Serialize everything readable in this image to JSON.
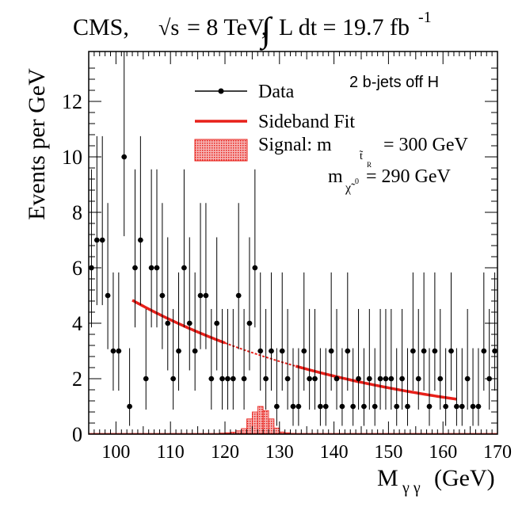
{
  "chart_data": {
    "type": "scatter",
    "title": {
      "experiment": "CMS,",
      "sqrt_s_symbol": "√s",
      "energy": "= 8 TeV,",
      "lumi_integral": "∫",
      "lumi_text": "L dt = 19.7 fb",
      "lumi_exp": "-1"
    },
    "annotation": "2 b-jets off H",
    "xlabel": "M",
    "xlabel_sub": "γ γ",
    "xlabel_unit": "(GeV)",
    "ylabel": "Events per GeV",
    "xlim": [
      95,
      170
    ],
    "ylim": [
      0,
      13.8
    ],
    "xticks": [
      100,
      110,
      120,
      130,
      140,
      150,
      160,
      170
    ],
    "yticks": [
      0,
      2,
      4,
      6,
      8,
      10,
      12
    ],
    "legend": {
      "position": "top-right",
      "data_label": "Data",
      "fit_label": "Sideband Fit",
      "signal_label_prefix": "Signal: m",
      "signal_sub_1": "t̃",
      "signal_sub_1b": "R",
      "signal_value_1": "= 300 GeV",
      "signal_label_2": "m",
      "signal_sub_2": "χ̃",
      "signal_sub_2b": "0",
      "signal_value_2": "= 290 GeV"
    },
    "series": [
      {
        "name": "Data",
        "x": [
          95.5,
          96.5,
          97.5,
          98.5,
          99.5,
          100.5,
          101.5,
          102.5,
          103.5,
          104.5,
          105.5,
          106.5,
          107.5,
          108.5,
          109.5,
          110.5,
          111.5,
          112.5,
          113.5,
          114.5,
          115.5,
          116.5,
          117.5,
          118.5,
          119.5,
          120.5,
          121.5,
          122.5,
          123.5,
          124.5,
          125.5,
          126.5,
          127.5,
          128.5,
          129.5,
          130.5,
          131.5,
          132.5,
          133.5,
          134.5,
          135.5,
          136.5,
          137.5,
          138.5,
          139.5,
          140.5,
          141.5,
          142.5,
          143.5,
          144.5,
          145.5,
          146.5,
          147.5,
          148.5,
          149.5,
          150.5,
          151.5,
          152.5,
          153.5,
          154.5,
          155.5,
          156.5,
          157.5,
          158.5,
          159.5,
          160.5,
          161.5,
          162.5,
          163.5,
          164.5,
          165.5,
          166.5,
          167.5,
          168.5,
          169.5
        ],
        "y": [
          6,
          7,
          7,
          5,
          3,
          3,
          10,
          1,
          6,
          7,
          2,
          6,
          6,
          5,
          4,
          2,
          3,
          6,
          4,
          3,
          5,
          5,
          2,
          4,
          2,
          2,
          2,
          5,
          2,
          4,
          6,
          3,
          2,
          3,
          1,
          3,
          2,
          1,
          1,
          3,
          2,
          2,
          1,
          1,
          3,
          2,
          1,
          3,
          1,
          2,
          1,
          2,
          1,
          2,
          2,
          2,
          1,
          2,
          1,
          3,
          2,
          3,
          1,
          3,
          2,
          1,
          3,
          1,
          1,
          2,
          1,
          1,
          3,
          2,
          3
        ]
      },
      {
        "name": "Sideband Fit",
        "x_range": [
          103,
          162.5
        ],
        "blinded_range": [
          120,
          130
        ],
        "y_at_start": 4.83,
        "y_at_end": 1.26
      },
      {
        "name": "Signal",
        "bins": [
          [
            119,
            0.04
          ],
          [
            120,
            0.05
          ],
          [
            121,
            0.07
          ],
          [
            122,
            0.12
          ],
          [
            123,
            0.2
          ],
          [
            124,
            0.55
          ],
          [
            125,
            0.8
          ],
          [
            126,
            1.0
          ],
          [
            127,
            0.85
          ],
          [
            128,
            0.55
          ],
          [
            129,
            0.22
          ],
          [
            130,
            0.08
          ],
          [
            131,
            0.05
          ],
          [
            132,
            0.03
          ]
        ]
      }
    ],
    "colors": {
      "data": "#000000",
      "fit": "#e8201a",
      "signal_fill": "#f4a3a3",
      "signal_edge": "#e8201a",
      "frame": "#000000"
    }
  }
}
